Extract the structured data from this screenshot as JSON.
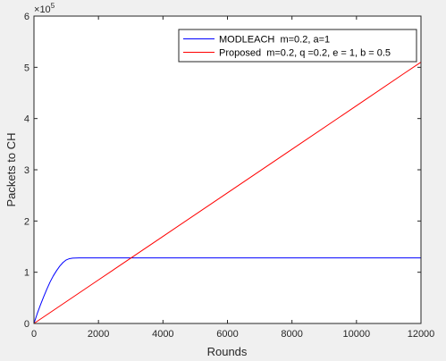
{
  "chart_data": {
    "type": "line",
    "title": "",
    "xlabel": "Rounds",
    "ylabel": "Packets to CH",
    "exponent_base": "10",
    "exponent_power": "5",
    "xlim": [
      0,
      12000
    ],
    "ylim": [
      0,
      6
    ],
    "x_ticks": [
      0,
      2000,
      4000,
      6000,
      8000,
      10000,
      12000
    ],
    "y_ticks": [
      0,
      1,
      2,
      3,
      4,
      5,
      6
    ],
    "x_tick_labels": [
      "0",
      "2000",
      "4000",
      "6000",
      "8000",
      "10000",
      "12000"
    ],
    "y_tick_labels": [
      "0",
      "1",
      "2",
      "3",
      "4",
      "5",
      "6"
    ],
    "grid": false,
    "legend_position": "top-right",
    "series": [
      {
        "name": "MODLEACH  m=0.2, a=1",
        "color": "#0000ff",
        "x": [
          0,
          100,
          200,
          300,
          400,
          500,
          600,
          700,
          800,
          900,
          1000,
          1100,
          1200,
          1400,
          1600,
          2000,
          3000,
          4000,
          5000,
          6000,
          7000,
          8000,
          9000,
          10000,
          11000,
          12000
        ],
        "y": [
          0,
          0.19,
          0.36,
          0.52,
          0.67,
          0.81,
          0.93,
          1.03,
          1.12,
          1.19,
          1.24,
          1.265,
          1.275,
          1.28,
          1.28,
          1.28,
          1.28,
          1.28,
          1.28,
          1.28,
          1.28,
          1.28,
          1.28,
          1.28,
          1.28,
          1.28
        ]
      },
      {
        "name": "Proposed  m=0.2, q =0.2, e = 1, b = 0.5",
        "color": "#ff0000",
        "x": [
          0,
          2000,
          4000,
          6000,
          8000,
          10000,
          11500,
          12000
        ],
        "y": [
          0,
          0.85,
          1.7,
          2.55,
          3.4,
          4.25,
          4.89,
          5.1
        ]
      }
    ]
  }
}
